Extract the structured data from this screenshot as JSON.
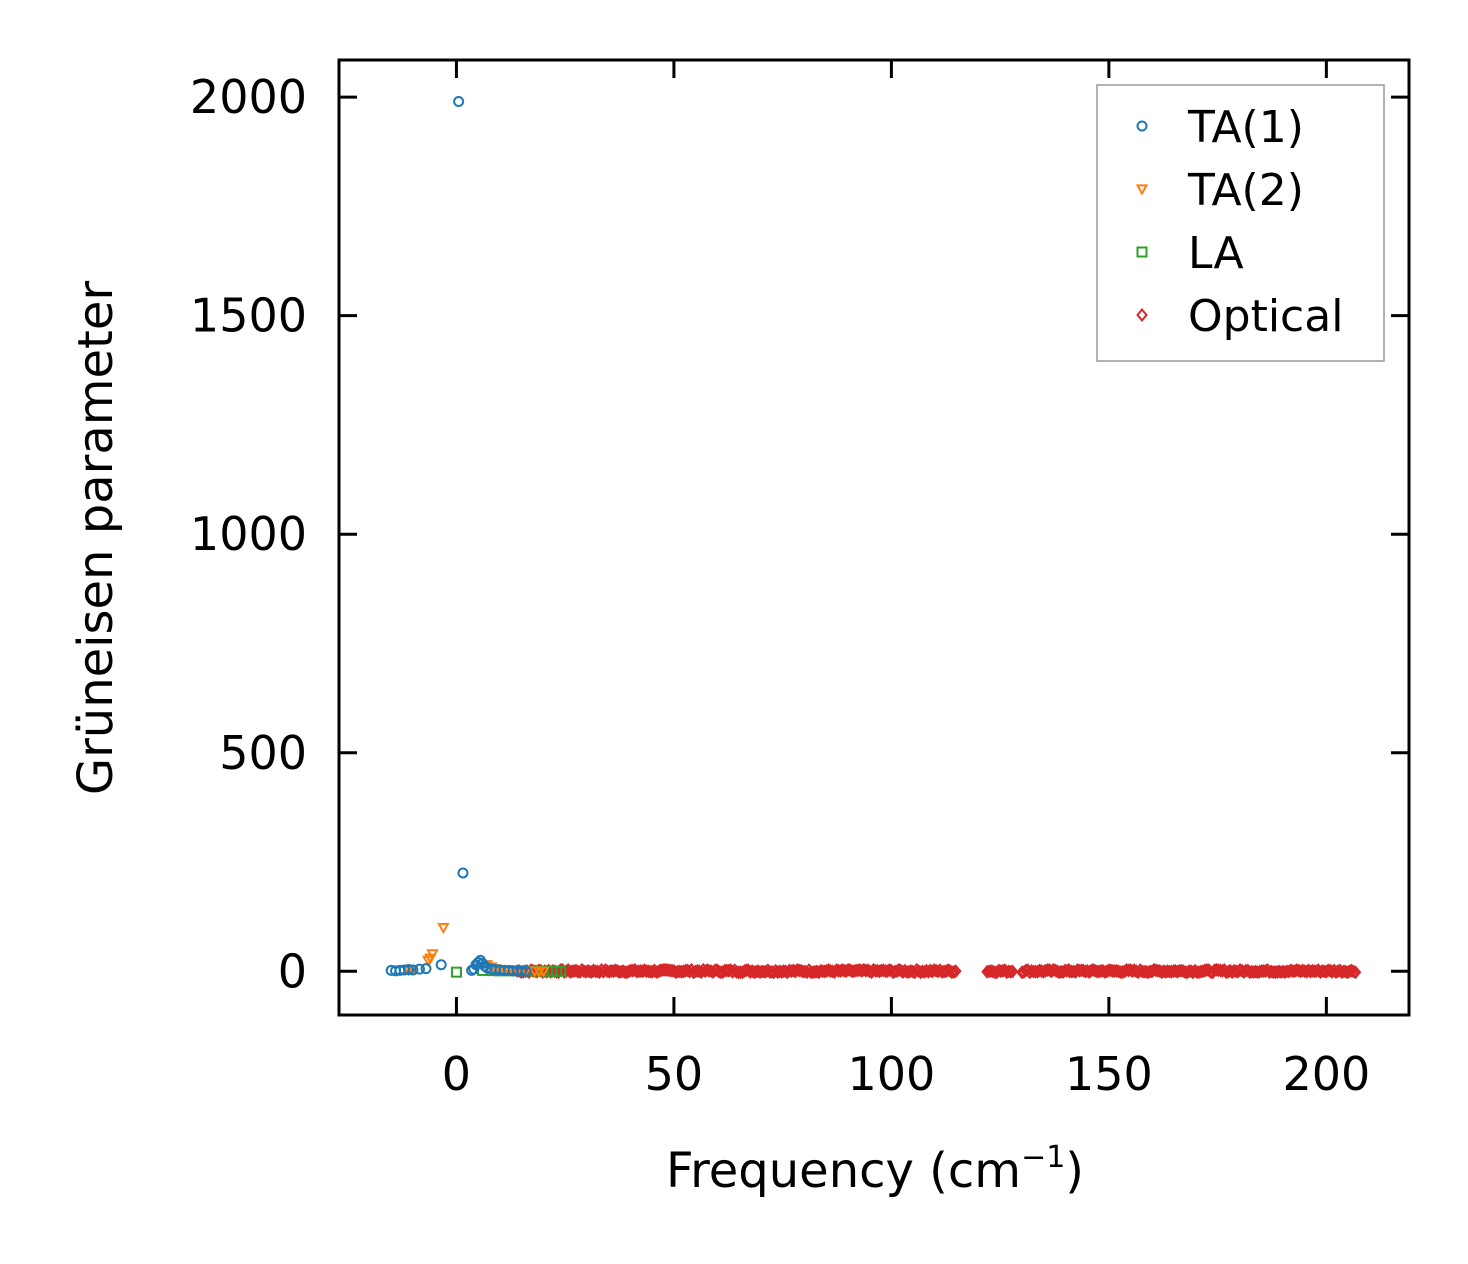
{
  "chart_data": {
    "type": "scatter",
    "title": "",
    "xlabel": "Frequency (cm",
    "xlabel_sup": "−1",
    "xlabel_close": ")",
    "ylabel": "Grüneisen parameter",
    "xlim": [
      -27,
      219
    ],
    "ylim": [
      -100,
      2085
    ],
    "xticks": [
      0,
      50,
      100,
      150,
      200
    ],
    "yticks": [
      0,
      500,
      1000,
      1500,
      2000
    ],
    "xtick_labels": [
      "0",
      "50",
      "100",
      "150",
      "200"
    ],
    "ytick_labels": [
      "0",
      "500",
      "1000",
      "1500",
      "2000"
    ],
    "grid": false,
    "legend_position": "top-right",
    "series": [
      {
        "name": "TA(1)",
        "marker": "circle",
        "color": "#1f77b4",
        "points": [
          [
            0.5,
            1990
          ],
          [
            1.5,
            225
          ],
          [
            -3.5,
            15
          ],
          [
            -15,
            2
          ],
          [
            -14,
            1
          ],
          [
            -13,
            2
          ],
          [
            -12,
            3
          ],
          [
            -11,
            4
          ],
          [
            -10,
            3
          ],
          [
            -8.5,
            5
          ],
          [
            -7,
            6
          ],
          [
            4.5,
            15
          ],
          [
            5,
            20
          ],
          [
            5.5,
            25
          ],
          [
            6,
            18
          ],
          [
            6.5,
            12
          ],
          [
            7,
            8
          ],
          [
            8,
            5
          ],
          [
            9,
            4
          ],
          [
            10,
            3
          ],
          [
            11,
            2
          ],
          [
            12,
            2
          ],
          [
            13,
            1
          ],
          [
            14,
            1
          ],
          [
            15,
            0.5
          ],
          [
            16,
            0.5
          ],
          [
            4,
            5
          ],
          [
            3.5,
            2
          ]
        ]
      },
      {
        "name": "TA(2)",
        "marker": "triangle-down",
        "color": "#ff7f0e",
        "points": [
          [
            -3,
            100
          ],
          [
            -5.5,
            40
          ],
          [
            -6,
            30
          ],
          [
            -6.5,
            25
          ],
          [
            -10,
            4
          ],
          [
            -11,
            3
          ],
          [
            7,
            15
          ],
          [
            8,
            10
          ],
          [
            9,
            6
          ],
          [
            10,
            4
          ],
          [
            12,
            3
          ],
          [
            14,
            2
          ],
          [
            16,
            1
          ],
          [
            18,
            0.5
          ],
          [
            19,
            0
          ],
          [
            20,
            0
          ]
        ]
      },
      {
        "name": "LA",
        "marker": "square",
        "color": "#2ca02c",
        "points": [
          [
            0,
            -2
          ],
          [
            6,
            2
          ],
          [
            8,
            1.5
          ],
          [
            10,
            1
          ],
          [
            12,
            1
          ],
          [
            14,
            0.8
          ],
          [
            16,
            0.6
          ],
          [
            18,
            0.5
          ],
          [
            20,
            0.4
          ],
          [
            21,
            0.3
          ],
          [
            22,
            0.2
          ],
          [
            23,
            0.2
          ],
          [
            24,
            0.1
          ]
        ]
      },
      {
        "name": "Optical",
        "marker": "diamond",
        "color": "#d62728",
        "ranges": [
          [
            14,
            115
          ],
          [
            122,
            128
          ],
          [
            130,
            141
          ],
          [
            141,
            207
          ]
        ],
        "y_center": 0.5,
        "y_spread": 6
      }
    ]
  }
}
